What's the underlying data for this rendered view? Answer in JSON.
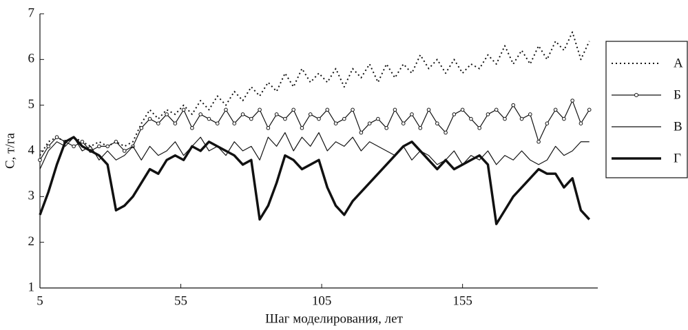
{
  "chart_data": {
    "type": "line",
    "xlabel": "Шаг моделирования, лет",
    "ylabel": "C, т/га",
    "x": [
      5,
      8,
      11,
      14,
      17,
      20,
      23,
      26,
      29,
      32,
      35,
      38,
      41,
      44,
      47,
      50,
      53,
      56,
      59,
      62,
      65,
      68,
      71,
      74,
      77,
      80,
      83,
      86,
      89,
      92,
      95,
      98,
      101,
      104,
      107,
      110,
      113,
      116,
      119,
      122,
      125,
      128,
      131,
      134,
      137,
      140,
      143,
      146,
      149,
      152,
      155,
      158,
      161,
      164,
      167,
      170,
      173,
      176,
      179,
      182,
      185,
      188,
      191,
      194,
      197,
      200
    ],
    "xlim": [
      5,
      203
    ],
    "xticks": [
      5,
      55,
      105,
      155
    ],
    "ylim": [
      1,
      7
    ],
    "yticks": [
      1,
      2,
      3,
      4,
      5,
      6,
      7
    ],
    "legend": "right",
    "series": [
      {
        "name": "А",
        "color": "#111",
        "line_width": 2,
        "dash": "2,4",
        "marker": null,
        "values": [
          3.9,
          4.2,
          4.3,
          4.2,
          4.3,
          4.2,
          4.1,
          4.2,
          4.1,
          4.2,
          4.1,
          4.2,
          4.6,
          4.9,
          4.7,
          4.9,
          4.8,
          5.0,
          4.8,
          5.1,
          4.9,
          5.2,
          5.0,
          5.3,
          5.1,
          5.4,
          5.2,
          5.5,
          5.3,
          5.7,
          5.4,
          5.8,
          5.5,
          5.7,
          5.5,
          5.8,
          5.4,
          5.8,
          5.6,
          5.9,
          5.5,
          5.9,
          5.6,
          5.9,
          5.7,
          6.1,
          5.8,
          6.0,
          5.7,
          6.0,
          5.7,
          5.9,
          5.8,
          6.1,
          5.9,
          6.3,
          5.9,
          6.2,
          5.9,
          6.3,
          6.0,
          6.4,
          6.2,
          6.6,
          6.0,
          6.4
        ]
      },
      {
        "name": "Б",
        "color": "#111",
        "line_width": 1.2,
        "dash": null,
        "marker": "circle",
        "values": [
          3.8,
          4.1,
          4.3,
          4.2,
          4.1,
          4.2,
          4.0,
          4.1,
          4.1,
          4.2,
          4.0,
          4.1,
          4.5,
          4.7,
          4.6,
          4.8,
          4.6,
          4.9,
          4.5,
          4.8,
          4.7,
          4.6,
          4.9,
          4.6,
          4.8,
          4.7,
          4.9,
          4.5,
          4.8,
          4.7,
          4.9,
          4.5,
          4.8,
          4.7,
          4.9,
          4.6,
          4.7,
          4.9,
          4.4,
          4.6,
          4.7,
          4.5,
          4.9,
          4.6,
          4.8,
          4.5,
          4.9,
          4.6,
          4.4,
          4.8,
          4.9,
          4.7,
          4.5,
          4.8,
          4.9,
          4.7,
          5.0,
          4.7,
          4.8,
          4.2,
          4.6,
          4.9,
          4.7,
          5.1,
          4.6,
          4.9
        ]
      },
      {
        "name": "В",
        "color": "#111",
        "line_width": 1.2,
        "dash": null,
        "marker": null,
        "values": [
          3.6,
          4.0,
          4.2,
          4.1,
          4.3,
          4.0,
          4.1,
          3.8,
          4.0,
          3.8,
          3.9,
          4.1,
          3.8,
          4.1,
          3.9,
          4.0,
          4.2,
          3.9,
          4.1,
          4.3,
          4.0,
          4.1,
          3.9,
          4.2,
          4.0,
          4.1,
          3.8,
          4.3,
          4.1,
          4.4,
          4.0,
          4.3,
          4.1,
          4.4,
          4.0,
          4.2,
          4.1,
          4.3,
          4.0,
          4.2,
          4.1,
          4.0,
          3.9,
          4.1,
          3.8,
          4.0,
          3.9,
          3.7,
          3.8,
          4.0,
          3.7,
          3.9,
          3.8,
          4.0,
          3.7,
          3.9,
          3.8,
          4.0,
          3.8,
          3.7,
          3.8,
          4.1,
          3.9,
          4.0,
          4.2,
          4.2
        ]
      },
      {
        "name": "Г",
        "color": "#111",
        "line_width": 3.5,
        "dash": null,
        "marker": null,
        "values": [
          2.6,
          3.1,
          3.7,
          4.2,
          4.3,
          4.1,
          4.0,
          3.9,
          3.7,
          2.7,
          2.8,
          3.0,
          3.3,
          3.6,
          3.5,
          3.8,
          3.9,
          3.8,
          4.1,
          4.0,
          4.2,
          4.1,
          4.0,
          3.9,
          3.7,
          3.8,
          2.5,
          2.8,
          3.3,
          3.9,
          3.8,
          3.6,
          3.7,
          3.8,
          3.2,
          2.8,
          2.6,
          2.9,
          3.1,
          3.3,
          3.5,
          3.7,
          3.9,
          4.1,
          4.2,
          4.0,
          3.8,
          3.6,
          3.8,
          3.6,
          3.7,
          3.8,
          3.9,
          3.7,
          2.4,
          2.7,
          3.0,
          3.2,
          3.4,
          3.6,
          3.5,
          3.5,
          3.2,
          3.4,
          2.7,
          2.5
        ]
      }
    ]
  }
}
